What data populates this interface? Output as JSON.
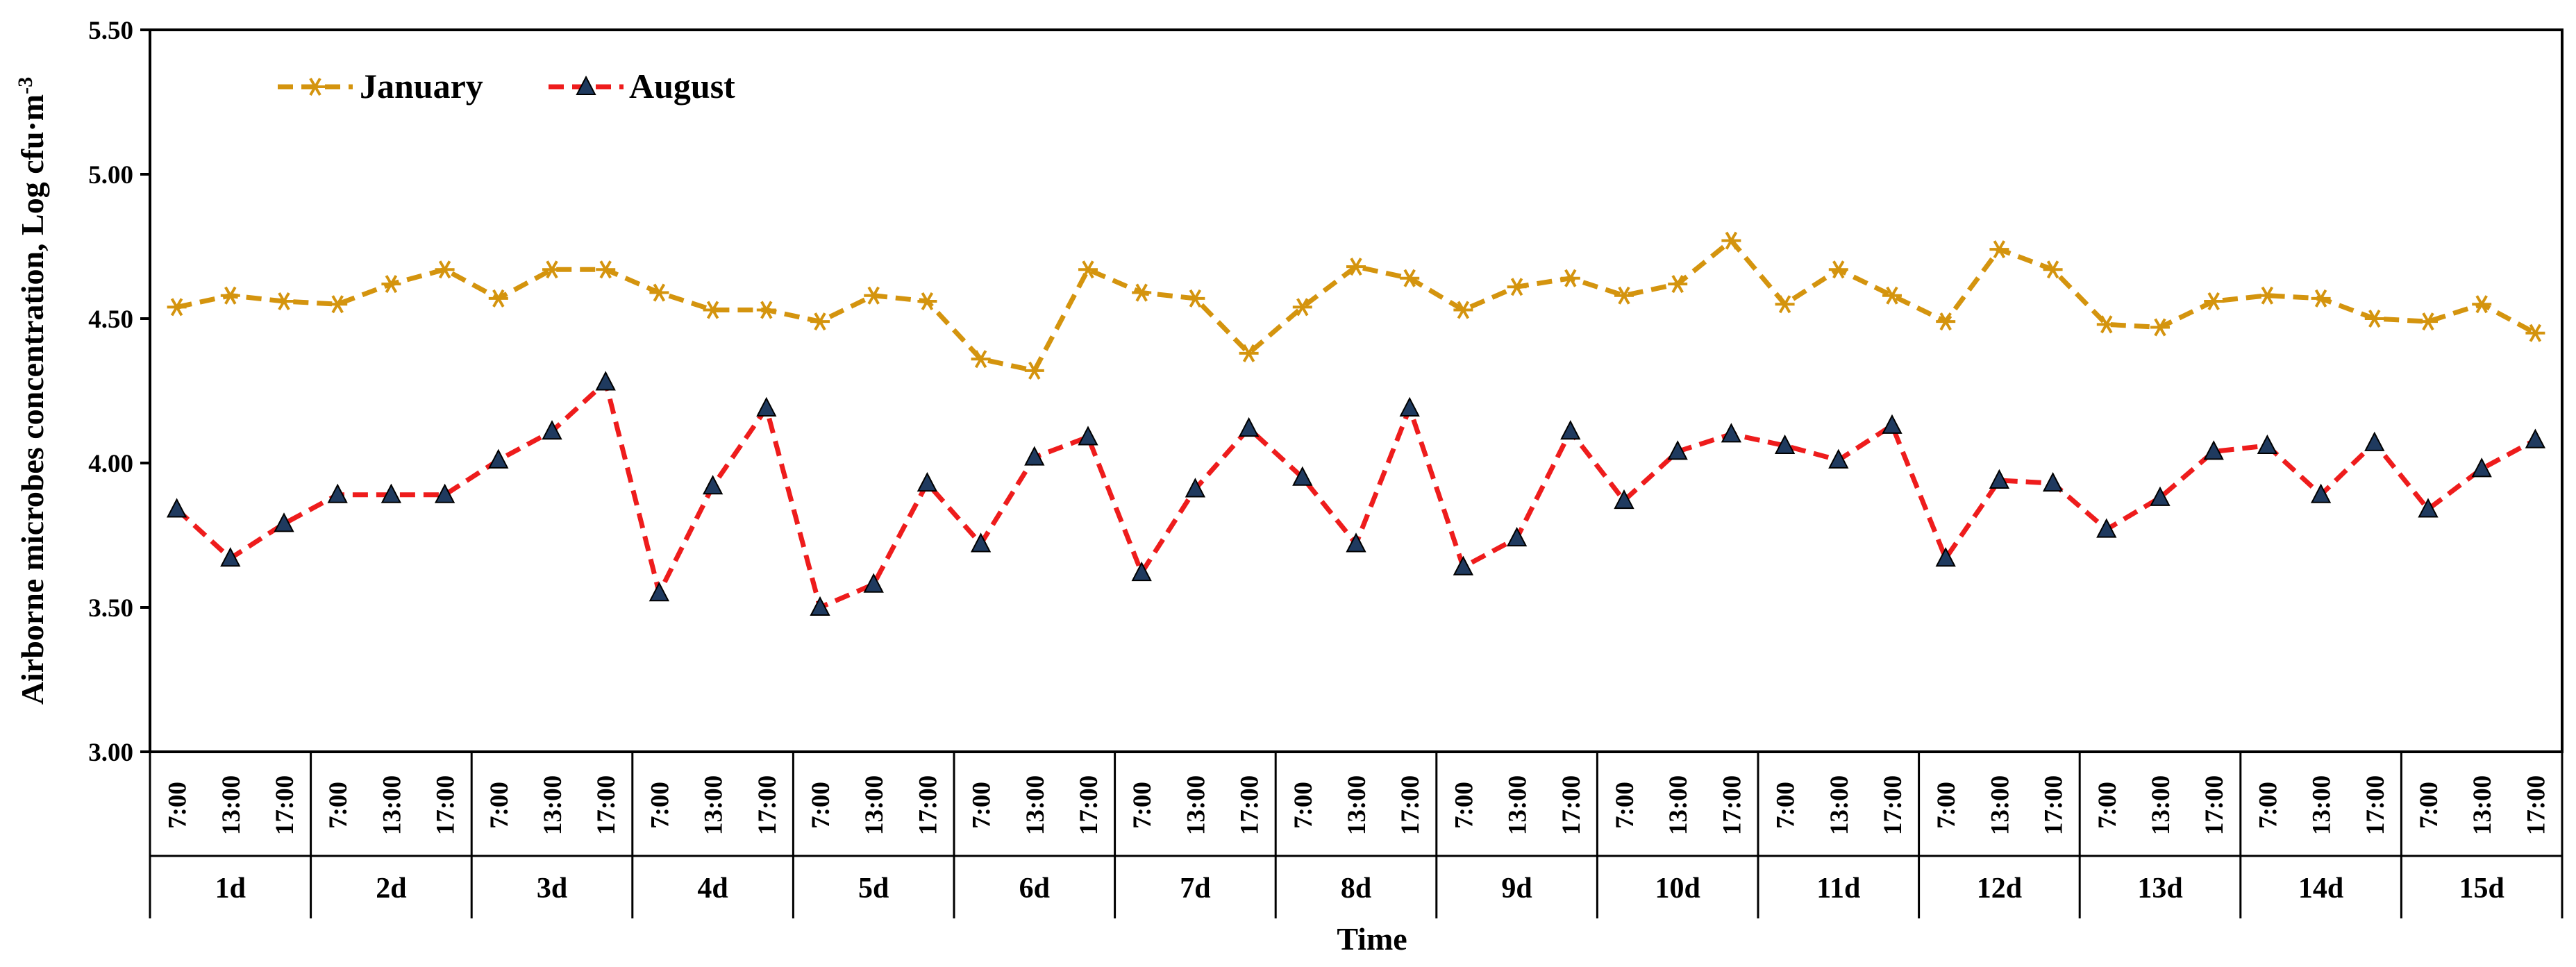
{
  "chart_data": {
    "type": "line",
    "ylabel": "Airborne microbes concentration, Log cfu·m",
    "ylabel_sup": "-3",
    "xlabel": "Time",
    "ylim": [
      3.0,
      5.5
    ],
    "y_ticks": [
      "3.00",
      "3.50",
      "4.00",
      "4.50",
      "5.00",
      "5.50"
    ],
    "time_labels": [
      "7:00",
      "13:00",
      "17:00"
    ],
    "days": [
      "1d",
      "2d",
      "3d",
      "4d",
      "5d",
      "6d",
      "7d",
      "8d",
      "9d",
      "10d",
      "11d",
      "12d",
      "13d",
      "14d",
      "15d"
    ],
    "legend_position": "top-left",
    "series": [
      {
        "name": "January",
        "color": "#D4940E",
        "marker": "asterisk",
        "values": [
          4.54,
          4.58,
          4.56,
          4.55,
          4.62,
          4.67,
          4.57,
          4.67,
          4.67,
          4.59,
          4.53,
          4.53,
          4.49,
          4.58,
          4.56,
          4.36,
          4.32,
          4.67,
          4.59,
          4.57,
          4.38,
          4.54,
          4.68,
          4.64,
          4.53,
          4.61,
          4.64,
          4.58,
          4.62,
          4.77,
          4.55,
          4.67,
          4.58,
          4.49,
          4.74,
          4.67,
          4.48,
          4.47,
          4.56,
          4.58,
          4.57,
          4.5,
          4.49,
          4.55,
          4.45
        ]
      },
      {
        "name": "August",
        "color": "#EE1C1C",
        "marker": "triangle",
        "values": [
          3.84,
          3.67,
          3.79,
          3.89,
          3.89,
          3.89,
          4.01,
          4.11,
          4.28,
          3.55,
          3.92,
          4.19,
          3.5,
          3.58,
          3.93,
          3.72,
          4.02,
          4.09,
          3.62,
          3.91,
          4.12,
          3.95,
          3.72,
          4.19,
          3.64,
          3.74,
          4.11,
          3.87,
          4.04,
          4.1,
          4.06,
          4.01,
          4.13,
          3.67,
          3.94,
          3.93,
          3.77,
          3.88,
          4.04,
          4.06,
          3.89,
          4.07,
          3.84,
          3.98,
          4.08
        ]
      }
    ]
  }
}
